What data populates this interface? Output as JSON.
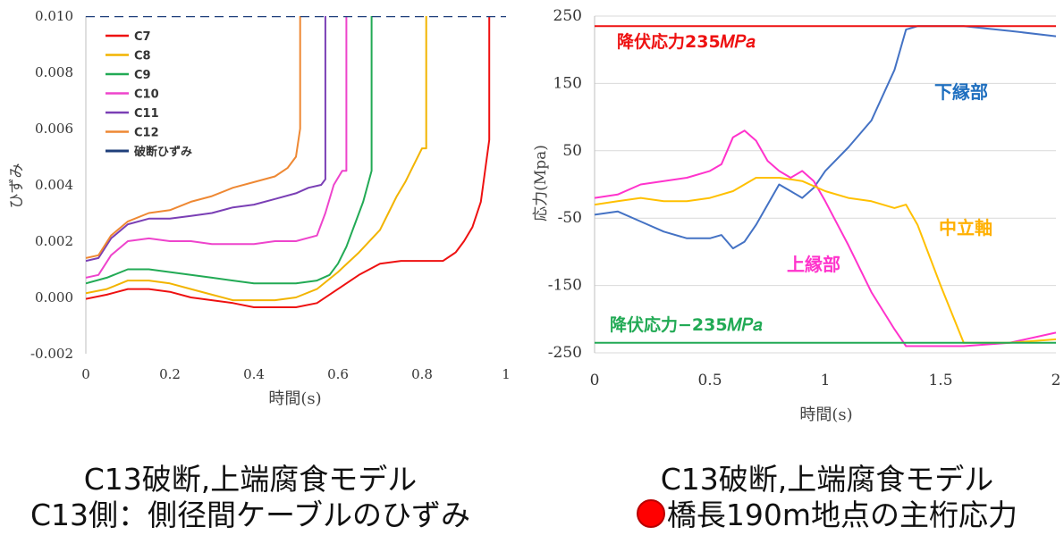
{
  "chart_data": [
    {
      "type": "line",
      "title": "",
      "xlabel": "時間(s)",
      "ylabel": "ひずみ",
      "xlim": [
        0,
        1
      ],
      "ylim": [
        -0.002,
        0.01
      ],
      "x_ticks": [
        0,
        0.2,
        0.4,
        0.6,
        0.8,
        1
      ],
      "x_tick_labels": [
        "0",
        "0.2",
        "0.4",
        "0.6",
        "0.8",
        "1"
      ],
      "y_ticks": [
        -0.002,
        0,
        0.002,
        0.004,
        0.006,
        0.008,
        0.01
      ],
      "y_tick_labels": [
        "-0.002",
        "0.000",
        "0.002",
        "0.004",
        "0.006",
        "0.008",
        "0.010"
      ],
      "legend_position": "top-left",
      "series": [
        {
          "name": "C7",
          "color": "#ee1111",
          "dash": false,
          "x": [
            0,
            0.05,
            0.1,
            0.15,
            0.2,
            0.25,
            0.3,
            0.35,
            0.4,
            0.45,
            0.5,
            0.55,
            0.6,
            0.65,
            0.7,
            0.75,
            0.8,
            0.85,
            0.88,
            0.9,
            0.92,
            0.94,
            0.95,
            0.96,
            0.96
          ],
          "y": [
            -5e-05,
            0.0001,
            0.0003,
            0.0003,
            0.0002,
            0.0,
            -0.0001,
            -0.0002,
            -0.00035,
            -0.00035,
            -0.00035,
            -0.0002,
            0.0003,
            0.0008,
            0.0012,
            0.0013,
            0.0013,
            0.0013,
            0.0016,
            0.002,
            0.0025,
            0.0034,
            0.0045,
            0.0056,
            0.0105
          ]
        },
        {
          "name": "C8",
          "color": "#f2b400",
          "dash": false,
          "x": [
            0,
            0.05,
            0.1,
            0.15,
            0.2,
            0.25,
            0.3,
            0.35,
            0.4,
            0.45,
            0.5,
            0.55,
            0.6,
            0.65,
            0.7,
            0.72,
            0.74,
            0.76,
            0.78,
            0.8,
            0.81,
            0.81
          ],
          "y": [
            0.00015,
            0.0003,
            0.0006,
            0.0006,
            0.0005,
            0.0003,
            0.0001,
            -0.0001,
            -0.0001,
            -0.0001,
            0.0,
            0.0003,
            0.0009,
            0.0016,
            0.0024,
            0.003,
            0.0036,
            0.0041,
            0.0047,
            0.0053,
            0.0053,
            0.0105
          ]
        },
        {
          "name": "C9",
          "color": "#22aa55",
          "dash": false,
          "x": [
            0,
            0.05,
            0.1,
            0.15,
            0.2,
            0.25,
            0.3,
            0.35,
            0.4,
            0.45,
            0.5,
            0.55,
            0.58,
            0.6,
            0.62,
            0.64,
            0.66,
            0.68,
            0.68
          ],
          "y": [
            0.0005,
            0.0007,
            0.001,
            0.001,
            0.0009,
            0.0008,
            0.0007,
            0.0006,
            0.0005,
            0.0005,
            0.0005,
            0.0006,
            0.0008,
            0.0012,
            0.0018,
            0.0026,
            0.0034,
            0.0045,
            0.0105
          ]
        },
        {
          "name": "C10",
          "color": "#ee44cc",
          "dash": false,
          "x": [
            0,
            0.03,
            0.06,
            0.1,
            0.15,
            0.2,
            0.25,
            0.3,
            0.35,
            0.4,
            0.45,
            0.5,
            0.55,
            0.57,
            0.59,
            0.61,
            0.62,
            0.62
          ],
          "y": [
            0.0007,
            0.0008,
            0.0015,
            0.002,
            0.0021,
            0.002,
            0.002,
            0.0019,
            0.0019,
            0.0019,
            0.002,
            0.002,
            0.0022,
            0.003,
            0.004,
            0.0045,
            0.0045,
            0.0105
          ]
        },
        {
          "name": "C11",
          "color": "#7a3fb5",
          "dash": false,
          "x": [
            0,
            0.03,
            0.06,
            0.1,
            0.15,
            0.2,
            0.25,
            0.3,
            0.35,
            0.4,
            0.45,
            0.5,
            0.53,
            0.56,
            0.57,
            0.57
          ],
          "y": [
            0.0013,
            0.0014,
            0.0021,
            0.0026,
            0.0028,
            0.0028,
            0.0029,
            0.003,
            0.0032,
            0.0033,
            0.0035,
            0.0037,
            0.0039,
            0.004,
            0.0042,
            0.0105
          ]
        },
        {
          "name": "C12",
          "color": "#ee8833",
          "dash": false,
          "x": [
            0,
            0.03,
            0.06,
            0.1,
            0.15,
            0.2,
            0.25,
            0.3,
            0.35,
            0.4,
            0.45,
            0.48,
            0.5,
            0.51,
            0.51
          ],
          "y": [
            0.0014,
            0.0015,
            0.0022,
            0.0027,
            0.003,
            0.0031,
            0.0034,
            0.0036,
            0.0039,
            0.0041,
            0.0043,
            0.0046,
            0.005,
            0.006,
            0.0105
          ]
        },
        {
          "name": "破断ひずみ",
          "color": "#1f3f7a",
          "dash": true,
          "x": [
            0,
            1
          ],
          "y": [
            0.01,
            0.01
          ]
        }
      ]
    },
    {
      "type": "line",
      "title": "",
      "xlabel": "時間(s)",
      "ylabel": "応力(Mpa)",
      "xlim": [
        0,
        2
      ],
      "ylim": [
        -250,
        250
      ],
      "x_ticks": [
        0,
        0.5,
        1,
        1.5,
        2
      ],
      "x_tick_labels": [
        "0",
        "0.5",
        "1",
        "1.5",
        "2"
      ],
      "y_ticks": [
        -250,
        -150,
        -50,
        50,
        150,
        250
      ],
      "y_tick_labels": [
        "-250",
        "-150",
        "-50",
        "50",
        "150",
        "250"
      ],
      "series": [
        {
          "name": "下縁部",
          "color": "#4472c4",
          "x": [
            0,
            0.1,
            0.2,
            0.3,
            0.4,
            0.5,
            0.55,
            0.6,
            0.65,
            0.7,
            0.75,
            0.8,
            0.85,
            0.9,
            0.95,
            1.0,
            1.1,
            1.2,
            1.3,
            1.35,
            1.4,
            1.6,
            1.8,
            2.0
          ],
          "y": [
            -45,
            -40,
            -55,
            -70,
            -80,
            -80,
            -75,
            -95,
            -85,
            -60,
            -30,
            0,
            -10,
            -20,
            -5,
            20,
            55,
            95,
            170,
            230,
            235,
            235,
            228,
            220
          ]
        },
        {
          "name": "上縁部",
          "color": "#ff33cc",
          "x": [
            0,
            0.1,
            0.2,
            0.3,
            0.4,
            0.5,
            0.55,
            0.6,
            0.65,
            0.7,
            0.75,
            0.8,
            0.85,
            0.9,
            0.95,
            1.0,
            1.1,
            1.2,
            1.3,
            1.35,
            1.4,
            1.6,
            1.8,
            2.0
          ],
          "y": [
            -20,
            -15,
            0,
            5,
            10,
            20,
            30,
            70,
            80,
            65,
            35,
            20,
            10,
            20,
            5,
            -25,
            -90,
            -160,
            -215,
            -240,
            -240,
            -240,
            -235,
            -220
          ]
        },
        {
          "name": "中立軸",
          "color": "#ffc000",
          "x": [
            0,
            0.1,
            0.2,
            0.3,
            0.4,
            0.5,
            0.6,
            0.7,
            0.8,
            0.9,
            1.0,
            1.1,
            1.2,
            1.3,
            1.35,
            1.4,
            1.5,
            1.6,
            1.7,
            1.8,
            2.0
          ],
          "y": [
            -30,
            -25,
            -20,
            -25,
            -25,
            -20,
            -10,
            10,
            10,
            5,
            -10,
            -20,
            -25,
            -35,
            -30,
            -60,
            -150,
            -235,
            -235,
            -235,
            -230
          ]
        },
        {
          "name": "降伏応力235𝑀𝑃𝑎",
          "color": "#ee1111",
          "x": [
            0,
            2
          ],
          "y": [
            235,
            235
          ]
        },
        {
          "name": "降伏応力−235𝑀𝑃𝑎",
          "color": "#22aa55",
          "x": [
            0,
            2
          ],
          "y": [
            -235,
            -235
          ]
        }
      ]
    }
  ],
  "annotations": {
    "right": {
      "lower_edge": "下縁部",
      "upper_edge": "上縁部",
      "neutral_axis": "中立軸",
      "yield_pos": "降伏応力235𝑀𝑃𝑎",
      "yield_neg": "降伏応力−235𝑀𝑃𝑎"
    },
    "colors": {
      "lower_edge": "#1f6fbf",
      "upper_edge": "#ff33cc",
      "neutral_axis": "#ffb000",
      "yield_pos": "#ee1111",
      "yield_neg": "#22aa55"
    }
  },
  "captions": {
    "left_line1": "C13破断,上端腐食モデル",
    "left_line2": "C13側：側径間ケーブルのひずみ",
    "right_line1": "C13破断,上端腐食モデル",
    "right_line2": "橋長190m地点の主桁応力"
  }
}
